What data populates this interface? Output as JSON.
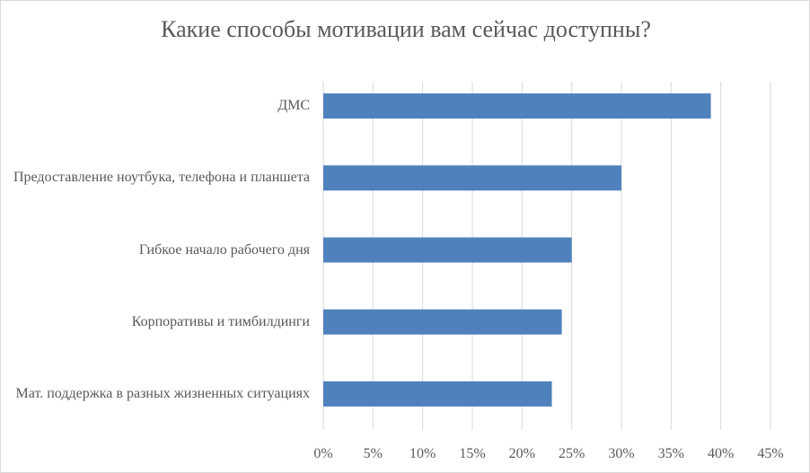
{
  "chart_data": {
    "type": "bar",
    "orientation": "horizontal",
    "title": "Какие способы мотивации вам сейчас доступны?",
    "categories": [
      "ДМС",
      "Предоставление ноутбука, телефона и планшета",
      "Гибкое начало рабочего дня",
      "Корпоративы и тимбилдинги",
      "Мат. поддержка в разных жизненных ситуациях"
    ],
    "values": [
      39,
      30,
      25,
      24,
      23
    ],
    "color": "#4f81bd",
    "xlim": [
      0,
      45
    ],
    "xticks": [
      {
        "value": 0,
        "label": "0%"
      },
      {
        "value": 5,
        "label": "5%"
      },
      {
        "value": 10,
        "label": "10%"
      },
      {
        "value": 15,
        "label": "15%"
      },
      {
        "value": 20,
        "label": "20%"
      },
      {
        "value": 25,
        "label": "25%"
      },
      {
        "value": 30,
        "label": "30%"
      },
      {
        "value": 35,
        "label": "35%"
      },
      {
        "value": 40,
        "label": "40%"
      },
      {
        "value": 45,
        "label": "45%"
      }
    ],
    "grid": true
  }
}
